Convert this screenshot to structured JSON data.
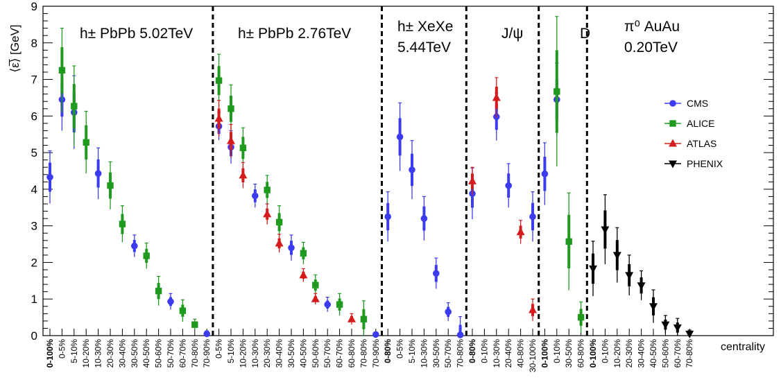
{
  "chart_data": {
    "type": "scatter",
    "ylabel": "⟨ε̅⟩ [GeV]",
    "xlabel": "centrality",
    "ylim": [
      0,
      9
    ],
    "yticks": [
      "0",
      "1",
      "2",
      "3",
      "4",
      "5",
      "6",
      "7",
      "8",
      "9"
    ],
    "legend": {
      "placement": "right",
      "entries": [
        "CMS",
        "ALICE",
        "ATLAS",
        "PHENIX"
      ]
    },
    "colors": {
      "CMS": "#3b3bf0",
      "ALICE": "#1f9a1f",
      "ATLAS": "#d41c1c",
      "PHENIX": "#000000"
    },
    "categories": [
      "0-100%",
      "0-5%",
      "5-10%",
      "10-20%",
      "10-30%",
      "20-30%",
      "30-40%",
      "30-50%",
      "40-50%",
      "50-60%",
      "50-70%",
      "60-70%",
      "70-80%",
      "70-90%",
      "0-5%",
      "5-10%",
      "10-20%",
      "10-30%",
      "20-30%",
      "30-40%",
      "30-50%",
      "40-50%",
      "50-60%",
      "50-70%",
      "60-70%",
      "60-80%",
      "70-80%",
      "70-90%",
      "0-80%",
      "0-5%",
      "5-10%",
      "10-30%",
      "30-50%",
      "50-70%",
      "70-80%",
      "0-80%",
      "0-10%",
      "10-30%",
      "20-40%",
      "40-80%",
      "30-100%",
      "0-100%",
      "0-10%",
      "30-50%",
      "60-80%",
      "0-100%",
      "0-10%",
      "10-20%",
      "20-30%",
      "30-40%",
      "40-50%",
      "50-60%",
      "60-70%",
      "70-80%"
    ],
    "panels": [
      {
        "label_line1": "h± PbPb 5.02TeV",
        "label_line2": ""
      },
      {
        "label_line1": "h± PbPb 2.76TeV",
        "label_line2": ""
      },
      {
        "label_line1": "h± XeXe",
        "label_line2": "5.44TeV"
      },
      {
        "label_line1": "J/ψ",
        "label_line2": ""
      },
      {
        "label_line1": "D",
        "label_line2": ""
      },
      {
        "label_line1": "π⁰ AuAu",
        "label_line2": "0.20TeV"
      }
    ],
    "series": [
      {
        "name": "CMS",
        "marker": "circle",
        "points": [
          {
            "x": 0,
            "y": 4.33,
            "err": 0.72
          },
          {
            "x": 1,
            "y": 6.45,
            "err": 0.85
          },
          {
            "x": 2,
            "y": 6.1,
            "err": 1.0
          },
          {
            "x": 4,
            "y": 4.43,
            "err": 0.7
          },
          {
            "x": 7,
            "y": 2.45,
            "err": 0.3
          },
          {
            "x": 10,
            "y": 0.93,
            "err": 0.22
          },
          {
            "x": 13,
            "y": 0.05,
            "err": 0.08
          },
          {
            "x": 14,
            "y": 5.72,
            "err": 0.38
          },
          {
            "x": 15,
            "y": 5.15,
            "err": 0.45
          },
          {
            "x": 17,
            "y": 3.82,
            "err": 0.32
          },
          {
            "x": 20,
            "y": 2.4,
            "err": 0.35
          },
          {
            "x": 23,
            "y": 0.85,
            "err": 0.2
          },
          {
            "x": 27,
            "y": 0.03,
            "err": 0.05
          },
          {
            "x": 28,
            "y": 3.25,
            "err": 0.68
          },
          {
            "x": 29,
            "y": 5.43,
            "err": 0.93
          },
          {
            "x": 30,
            "y": 4.53,
            "err": 0.8
          },
          {
            "x": 31,
            "y": 3.2,
            "err": 0.6
          },
          {
            "x": 32,
            "y": 1.7,
            "err": 0.42
          },
          {
            "x": 33,
            "y": 0.65,
            "err": 0.25
          },
          {
            "x": 34,
            "y": 0.02,
            "err": 0.5
          },
          {
            "x": 35,
            "y": 3.88,
            "err": 0.7
          },
          {
            "x": 37,
            "y": 5.98,
            "err": 0.65
          },
          {
            "x": 38,
            "y": 4.1,
            "err": 0.6
          },
          {
            "x": 40,
            "y": 3.25,
            "err": 0.68
          },
          {
            "x": 41,
            "y": 4.42,
            "err": 0.85
          },
          {
            "x": 42,
            "y": 6.45,
            "err": 1.0
          }
        ]
      },
      {
        "name": "ALICE",
        "marker": "square",
        "points": [
          {
            "x": 1,
            "y": 7.25,
            "err": 1.15
          },
          {
            "x": 2,
            "y": 6.27,
            "err": 1.1
          },
          {
            "x": 3,
            "y": 5.28,
            "err": 0.85
          },
          {
            "x": 5,
            "y": 4.1,
            "err": 0.65
          },
          {
            "x": 6,
            "y": 3.05,
            "err": 0.5
          },
          {
            "x": 8,
            "y": 2.18,
            "err": 0.35
          },
          {
            "x": 9,
            "y": 1.22,
            "err": 0.4
          },
          {
            "x": 11,
            "y": 0.68,
            "err": 0.3
          },
          {
            "x": 12,
            "y": 0.3,
            "err": 0.15
          },
          {
            "x": 14,
            "y": 6.97,
            "err": 0.72
          },
          {
            "x": 15,
            "y": 6.2,
            "err": 0.65
          },
          {
            "x": 16,
            "y": 5.13,
            "err": 0.55
          },
          {
            "x": 18,
            "y": 3.98,
            "err": 0.4
          },
          {
            "x": 19,
            "y": 3.1,
            "err": 0.45
          },
          {
            "x": 21,
            "y": 2.25,
            "err": 0.3
          },
          {
            "x": 22,
            "y": 1.38,
            "err": 0.28
          },
          {
            "x": 24,
            "y": 0.85,
            "err": 0.3
          },
          {
            "x": 26,
            "y": 0.45,
            "err": 0.5
          },
          {
            "x": 42,
            "y": 6.67,
            "err": 2.05
          },
          {
            "x": 43,
            "y": 2.57,
            "err": 1.33
          },
          {
            "x": 44,
            "y": 0.5,
            "err": 0.42
          }
        ]
      },
      {
        "name": "ATLAS",
        "marker": "triangle-up",
        "points": [
          {
            "x": 14,
            "y": 5.93,
            "err": 0.5
          },
          {
            "x": 15,
            "y": 5.32,
            "err": 0.45
          },
          {
            "x": 16,
            "y": 4.38,
            "err": 0.35
          },
          {
            "x": 18,
            "y": 3.32,
            "err": 0.28
          },
          {
            "x": 19,
            "y": 2.52,
            "err": 0.25
          },
          {
            "x": 21,
            "y": 1.65,
            "err": 0.18
          },
          {
            "x": 22,
            "y": 1.0,
            "err": 0.15
          },
          {
            "x": 25,
            "y": 0.45,
            "err": 0.15
          },
          {
            "x": 35,
            "y": 4.22,
            "err": 0.38
          },
          {
            "x": 37,
            "y": 6.5,
            "err": 0.55
          },
          {
            "x": 39,
            "y": 2.83,
            "err": 0.32
          },
          {
            "x": 40,
            "y": 0.7,
            "err": 0.3
          }
        ]
      },
      {
        "name": "PHENIX",
        "marker": "triangle-down",
        "points": [
          {
            "x": 45,
            "y": 1.83,
            "err": 0.75
          },
          {
            "x": 46,
            "y": 2.9,
            "err": 0.95
          },
          {
            "x": 47,
            "y": 2.2,
            "err": 0.75
          },
          {
            "x": 48,
            "y": 1.65,
            "err": 0.55
          },
          {
            "x": 49,
            "y": 1.37,
            "err": 0.4
          },
          {
            "x": 50,
            "y": 0.8,
            "err": 0.45
          },
          {
            "x": 51,
            "y": 0.3,
            "err": 0.25
          },
          {
            "x": 52,
            "y": 0.22,
            "err": 0.25
          },
          {
            "x": 53,
            "y": 0.05,
            "err": 0.1
          }
        ]
      }
    ]
  }
}
